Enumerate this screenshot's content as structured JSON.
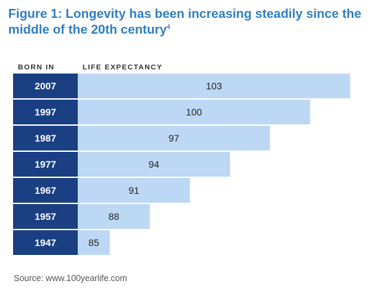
{
  "figure": {
    "title_prefix": "Figure 1:",
    "title_text": "Longevity has been increasing steadily since the middle of the 20th century",
    "title_footnote": "4",
    "source": "Source: www.100yearlife.com"
  },
  "colors": {
    "title": "#2f7fc1",
    "year_cell": "#1a3f82",
    "bar": "#bcd8f5",
    "separator": "#ffffff"
  },
  "chart_data": {
    "type": "bar",
    "orientation": "horizontal",
    "category_header": "BORN IN",
    "value_header": "LIFE EXPECTANCY",
    "categories": [
      "2007",
      "1997",
      "1987",
      "1977",
      "1967",
      "1957",
      "1947"
    ],
    "values": [
      103,
      100,
      97,
      94,
      91,
      88,
      85
    ],
    "data_labels": true,
    "grid": false,
    "legend": "none"
  }
}
